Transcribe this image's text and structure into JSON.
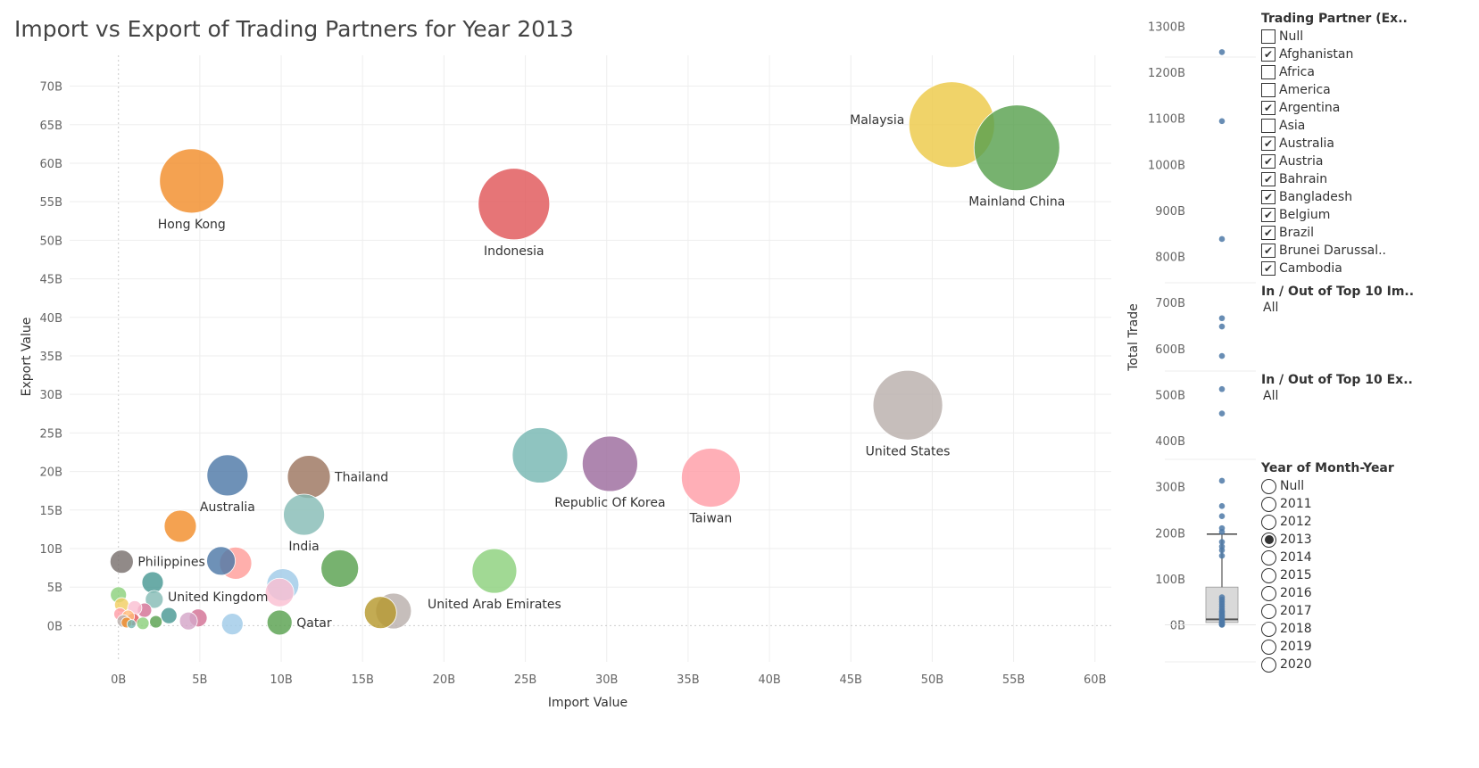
{
  "chart_data": [
    {
      "type": "scatter",
      "title": "Import vs Export of Trading Partners for Year 2013",
      "xlabel": "Import Value",
      "ylabel": "Export Value",
      "xlim": [
        -3,
        61
      ],
      "ylim": [
        -4.7,
        74
      ],
      "x_ticks": [
        "0B",
        "5B",
        "10B",
        "15B",
        "20B",
        "25B",
        "30B",
        "35B",
        "40B",
        "45B",
        "50B",
        "55B",
        "60B"
      ],
      "y_ticks": [
        "0B",
        "5B",
        "10B",
        "15B",
        "20B",
        "25B",
        "30B",
        "35B",
        "40B",
        "45B",
        "50B",
        "55B",
        "60B",
        "65B",
        "70B"
      ],
      "units": "billions",
      "points": [
        {
          "label": "Malaysia",
          "x": 51.2,
          "y": 65.0,
          "r": 48,
          "color": "#EDC948",
          "label_pos": "left"
        },
        {
          "label": "Mainland China",
          "x": 55.2,
          "y": 62.0,
          "r": 48,
          "color": "#59A14F",
          "label_pos": "below"
        },
        {
          "label": "Hong Kong",
          "x": 4.5,
          "y": 57.7,
          "r": 36,
          "color": "#F28E2B",
          "label_pos": "below"
        },
        {
          "label": "Indonesia",
          "x": 24.3,
          "y": 54.7,
          "r": 40,
          "color": "#E15759",
          "label_pos": "below"
        },
        {
          "label": "United States",
          "x": 48.5,
          "y": 28.6,
          "r": 39,
          "color": "#BAB0AC",
          "label_pos": "below"
        },
        {
          "label": "",
          "x": 25.9,
          "y": 22.1,
          "r": 31,
          "color": "#76B7B2",
          "label_pos": "none"
        },
        {
          "label": "Republic Of Korea",
          "x": 30.2,
          "y": 21.0,
          "r": 31,
          "color": "#9C6B9E",
          "label_pos": "below"
        },
        {
          "label": "Taiwan",
          "x": 36.4,
          "y": 19.2,
          "r": 33,
          "color": "#FF9DA7",
          "label_pos": "below"
        },
        {
          "label": "Australia",
          "x": 6.7,
          "y": 19.5,
          "r": 23,
          "color": "#4E79A7",
          "label_pos": "below"
        },
        {
          "label": "Thailand",
          "x": 11.7,
          "y": 19.3,
          "r": 24,
          "color": "#9C755F",
          "label_pos": "right"
        },
        {
          "label": "India",
          "x": 11.4,
          "y": 14.4,
          "r": 23,
          "color": "#86BCB6",
          "label_pos": "below"
        },
        {
          "label": "",
          "x": 3.8,
          "y": 12.9,
          "r": 18,
          "color": "#F28E2B",
          "label_pos": "none"
        },
        {
          "label": "Philippines",
          "x": 0.2,
          "y": 8.3,
          "r": 13,
          "color": "#79706E",
          "label_pos": "right"
        },
        {
          "label": "",
          "x": 6.3,
          "y": 8.4,
          "r": 16,
          "color": "#4E79A7",
          "label_pos": "none"
        },
        {
          "label": "",
          "x": 7.2,
          "y": 8.1,
          "r": 18,
          "color": "#FF9D9A",
          "label_pos": "none"
        },
        {
          "label": "",
          "x": 13.6,
          "y": 7.4,
          "r": 21,
          "color": "#59A14F",
          "label_pos": "none"
        },
        {
          "label": "United Arab Emirates",
          "x": 23.1,
          "y": 7.1,
          "r": 25,
          "color": "#8CD17D",
          "label_pos": "below"
        },
        {
          "label": "United Kingdom",
          "x": 2.1,
          "y": 5.6,
          "r": 12,
          "color": "#499894",
          "label_pos": "belowright"
        },
        {
          "label": "",
          "x": 10.1,
          "y": 5.3,
          "r": 18,
          "color": "#A0CBE8",
          "label_pos": "none"
        },
        {
          "label": "",
          "x": 9.9,
          "y": 4.3,
          "r": 16,
          "color": "#FABFD2",
          "label_pos": "none"
        },
        {
          "label": "",
          "x": 0.0,
          "y": 4.0,
          "r": 9,
          "color": "#8CD17D",
          "label_pos": "none"
        },
        {
          "label": "",
          "x": 2.2,
          "y": 3.4,
          "r": 10,
          "color": "#86BCB6",
          "label_pos": "none"
        },
        {
          "label": "",
          "x": 0.2,
          "y": 2.7,
          "r": 8,
          "color": "#F1CE63",
          "label_pos": "none"
        },
        {
          "label": "",
          "x": 16.9,
          "y": 1.9,
          "r": 20,
          "color": "#BAB0AC",
          "label_pos": "none"
        },
        {
          "label": "",
          "x": 16.1,
          "y": 1.7,
          "r": 18,
          "color": "#B6992D",
          "label_pos": "none"
        },
        {
          "label": "",
          "x": 1.6,
          "y": 2.0,
          "r": 8,
          "color": "#D37295",
          "label_pos": "none"
        },
        {
          "label": "",
          "x": 1.0,
          "y": 2.3,
          "r": 8,
          "color": "#FABFD2",
          "label_pos": "none"
        },
        {
          "label": "",
          "x": 0.1,
          "y": 1.5,
          "r": 7,
          "color": "#FF9DA7",
          "label_pos": "none"
        },
        {
          "label": "",
          "x": 3.1,
          "y": 1.3,
          "r": 9,
          "color": "#499894",
          "label_pos": "none"
        },
        {
          "label": "",
          "x": 4.9,
          "y": 1.0,
          "r": 10,
          "color": "#D37295",
          "label_pos": "none"
        },
        {
          "label": "",
          "x": 4.3,
          "y": 0.6,
          "r": 10,
          "color": "#D4A6C8",
          "label_pos": "none"
        },
        {
          "label": "",
          "x": 0.9,
          "y": 0.8,
          "r": 7,
          "color": "#E15759",
          "label_pos": "none"
        },
        {
          "label": "",
          "x": 0.6,
          "y": 1.2,
          "r": 7,
          "color": "#FFBE7D",
          "label_pos": "none"
        },
        {
          "label": "",
          "x": 0.3,
          "y": 0.6,
          "r": 7,
          "color": "#BAB0AC",
          "label_pos": "none"
        },
        {
          "label": "",
          "x": 0.5,
          "y": 0.4,
          "r": 6,
          "color": "#F28E2B",
          "label_pos": "none"
        },
        {
          "label": "",
          "x": 1.5,
          "y": 0.3,
          "r": 7,
          "color": "#8CD17D",
          "label_pos": "none"
        },
        {
          "label": "",
          "x": 2.3,
          "y": 0.5,
          "r": 7,
          "color": "#59A14F",
          "label_pos": "none"
        },
        {
          "label": "",
          "x": 0.8,
          "y": 0.2,
          "r": 5,
          "color": "#76B7B2",
          "label_pos": "none"
        },
        {
          "label": "",
          "x": 7.0,
          "y": 0.2,
          "r": 12,
          "color": "#A0CBE8",
          "label_pos": "none"
        },
        {
          "label": "Qatar",
          "x": 9.9,
          "y": 0.4,
          "r": 14,
          "color": "#59A14F",
          "label_pos": "right"
        }
      ]
    },
    {
      "type": "box",
      "ylabel": "Total Trade",
      "ylim": [
        -30,
        1330
      ],
      "y_ticks": [
        "0B",
        "100B",
        "200B",
        "300B",
        "400B",
        "500B",
        "600B",
        "700B",
        "800B",
        "900B",
        "1000B",
        "1100B",
        "1200B",
        "1300B"
      ],
      "units": "billions",
      "values": [
        1244,
        1094,
        838,
        666,
        648,
        584,
        512,
        459,
        313,
        258,
        236,
        210,
        202,
        180,
        170,
        162,
        150,
        60,
        55,
        50,
        45,
        40,
        35,
        30,
        28,
        25,
        22,
        20,
        18,
        15,
        12,
        10,
        8,
        6,
        4,
        3,
        2,
        1,
        0.5,
        0.2
      ],
      "box": {
        "q1": 5,
        "median": 12,
        "q3": 82,
        "whisker_low": 0,
        "whisker_high": 197
      }
    }
  ],
  "filters": {
    "trading_partner": {
      "title": "Trading Partner (Ex..",
      "items": [
        {
          "label": "Null",
          "checked": false
        },
        {
          "label": "Afghanistan",
          "checked": true
        },
        {
          "label": "Africa",
          "checked": false
        },
        {
          "label": "America",
          "checked": false
        },
        {
          "label": "Argentina",
          "checked": true
        },
        {
          "label": "Asia",
          "checked": false
        },
        {
          "label": "Australia",
          "checked": true
        },
        {
          "label": "Austria",
          "checked": true
        },
        {
          "label": "Bahrain",
          "checked": true
        },
        {
          "label": "Bangladesh",
          "checked": true
        },
        {
          "label": "Belgium",
          "checked": true
        },
        {
          "label": "Brazil",
          "checked": true
        },
        {
          "label": "Brunei Darussal..",
          "checked": true
        },
        {
          "label": "Cambodia",
          "checked": true
        }
      ]
    },
    "top10_import": {
      "title": "In / Out of Top 10 Im..",
      "value": "All"
    },
    "top10_export": {
      "title": "In / Out of Top 10 Ex..",
      "value": "All"
    },
    "year": {
      "title": "Year of Month-Year",
      "options": [
        "Null",
        "2011",
        "2012",
        "2013",
        "2014",
        "2015",
        "2016",
        "2017",
        "2018",
        "2019",
        "2020"
      ],
      "selected": "2013"
    }
  },
  "colors": {
    "grid": "#eeeeee",
    "box_fill": "#d9d9d9",
    "dot": "#4E79A7"
  }
}
